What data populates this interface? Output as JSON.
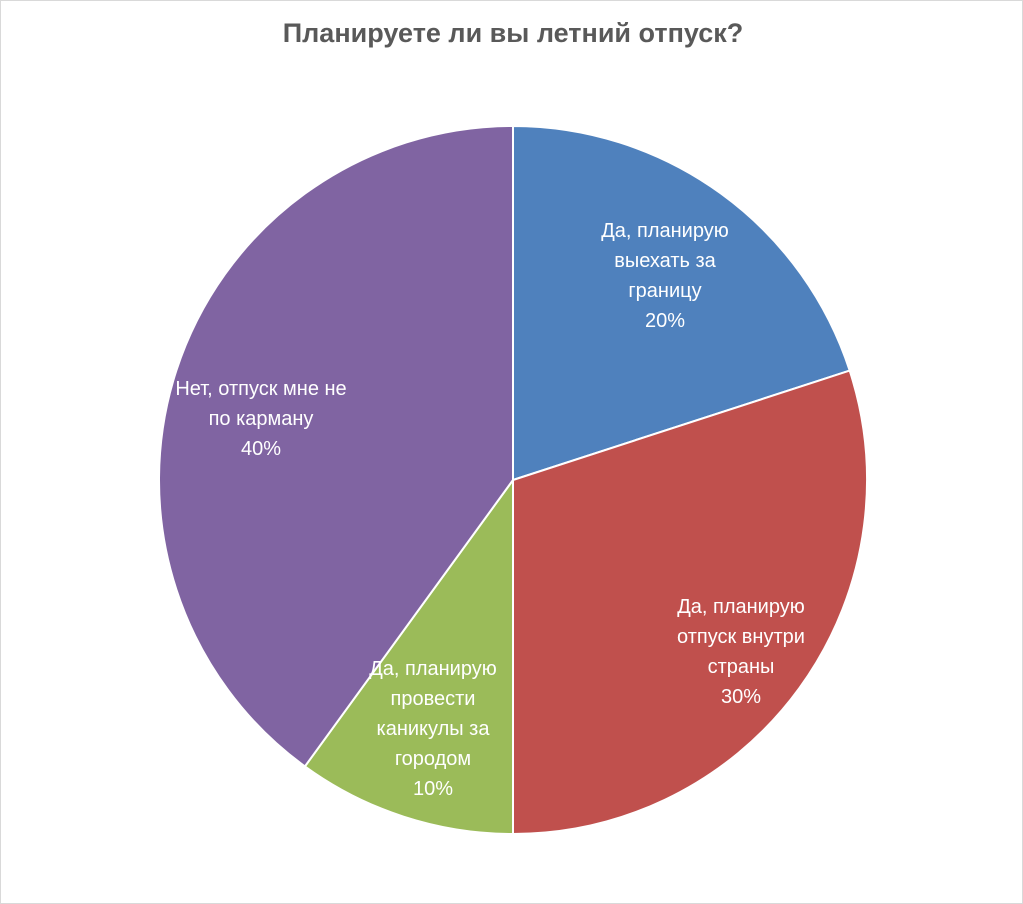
{
  "chart_data": {
    "type": "pie",
    "title": "Планируете ли вы летний отпуск?",
    "categories": [
      "Да, планирую выехать за границу",
      "Да, планирую отпуск внутри страны",
      "Да, планирую провести каникулы за городом",
      "Нет, отпуск мне не по карману"
    ],
    "values": [
      20,
      30,
      10,
      40
    ],
    "value_labels": [
      "20%",
      "30%",
      "10%",
      "40%"
    ],
    "colors": [
      "#4f81bd",
      "#c0504d",
      "#9bbb59",
      "#8064a2"
    ]
  }
}
